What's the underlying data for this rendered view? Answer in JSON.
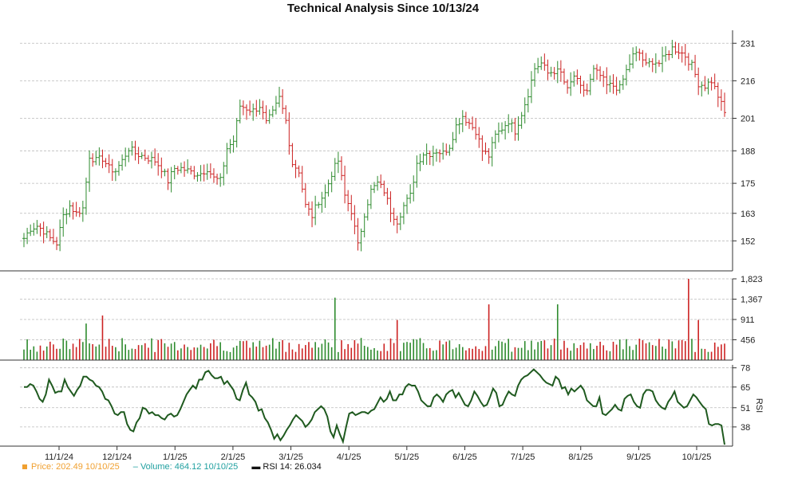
{
  "chart_data": {
    "type": "stock-technical",
    "title": "Technical Analysis Since 10/13/24",
    "x_tick_labels": [
      "11/1/24",
      "12/1/24",
      "1/1/25",
      "2/1/25",
      "3/1/25",
      "4/1/25",
      "5/1/25",
      "6/1/25",
      "7/1/25",
      "8/1/25",
      "9/1/25",
      "10/1/25"
    ],
    "price_panel": {
      "y_ticks": [
        231,
        216,
        201,
        188,
        175,
        163,
        152
      ],
      "ylim": [
        140,
        233
      ],
      "series": [
        {
          "name": "Price",
          "type": "ohlc",
          "close_approx": [
            153,
            157,
            158,
            156,
            153,
            151,
            162,
            166,
            163,
            165,
            186,
            184,
            185,
            181,
            180,
            184,
            189,
            187,
            186,
            185,
            184,
            181,
            176,
            181,
            181,
            180,
            179,
            179,
            181,
            177,
            176,
            189,
            192,
            206,
            205,
            204,
            206,
            199,
            203,
            209,
            200,
            183,
            180,
            166,
            162,
            168,
            171,
            179,
            184,
            170,
            164,
            150,
            163,
            172,
            175,
            172,
            164,
            160,
            166,
            170,
            183,
            187,
            187,
            188,
            187,
            190,
            198,
            202,
            199,
            196,
            188,
            186,
            194,
            197,
            200,
            196,
            203,
            211,
            221,
            223,
            219,
            220,
            219,
            212,
            218,
            213,
            212,
            220,
            218,
            214,
            214,
            213,
            220,
            226,
            227,
            222,
            224,
            223,
            226,
            229,
            228,
            226,
            222,
            215,
            214,
            216,
            210,
            203
          ]
        }
      ]
    },
    "volume_panel": {
      "y_ticks": [
        "1,823",
        "1,367",
        "911",
        "456"
      ],
      "ylim": [
        0,
        1823
      ],
      "max_spike": 1823
    },
    "rsi_panel": {
      "name": "RSI 14",
      "ylabel": "RSI",
      "y_ticks": [
        78,
        65,
        51,
        38
      ],
      "ylim": [
        25,
        80
      ],
      "values": [
        65,
        65,
        67,
        66,
        62,
        57,
        55,
        60,
        70,
        66,
        61,
        62,
        62,
        70,
        65,
        62,
        59,
        63,
        66,
        72,
        72,
        70,
        69,
        66,
        65,
        62,
        57,
        56,
        52,
        47,
        46,
        48,
        48,
        40,
        36,
        35,
        41,
        44,
        51,
        50,
        47,
        48,
        46,
        46,
        44,
        43,
        46,
        47,
        45,
        46,
        50,
        55,
        60,
        63,
        66,
        64,
        70,
        70,
        75,
        76,
        73,
        71,
        71,
        72,
        67,
        69,
        66,
        63,
        57,
        56,
        63,
        68,
        60,
        58,
        55,
        49,
        50,
        44,
        41,
        36,
        30,
        33,
        29,
        32,
        36,
        39,
        43,
        46,
        44,
        42,
        38,
        40,
        43,
        48,
        50,
        52,
        50,
        45,
        35,
        31,
        39,
        33,
        28,
        38,
        47,
        48,
        46,
        47,
        48,
        48,
        47,
        49,
        50,
        54,
        58,
        55,
        57,
        62,
        56,
        56,
        60,
        60,
        65,
        67,
        66,
        66,
        62,
        56,
        54,
        52,
        52,
        58,
        60,
        58,
        55,
        60,
        62,
        63,
        58,
        61,
        57,
        53,
        52,
        56,
        62,
        59,
        55,
        52,
        53,
        58,
        64,
        61,
        52,
        53,
        58,
        62,
        60,
        59,
        66,
        70,
        72,
        73,
        75,
        77,
        75,
        73,
        70,
        68,
        67,
        66,
        72,
        70,
        64,
        65,
        60,
        64,
        62,
        64,
        66,
        63,
        56,
        54,
        52,
        52,
        58,
        47,
        46,
        48,
        50,
        53,
        50,
        49,
        57,
        59,
        60,
        55,
        52,
        51,
        60,
        63,
        63,
        62,
        56,
        53,
        51,
        50,
        55,
        58,
        62,
        55,
        53,
        51,
        52,
        56,
        60,
        58,
        55,
        52,
        50,
        40,
        39,
        40,
        40,
        39,
        26
      ]
    }
  },
  "legend": {
    "price_label": "Price: 202.49  10/10/25",
    "volume_label": "Volume: 464.12  10/10/25",
    "rsi_label": "RSI 14: 26.034",
    "price_color": "#f0a030",
    "volume_color": "#20a0a0",
    "rsi_color": "#111111"
  }
}
